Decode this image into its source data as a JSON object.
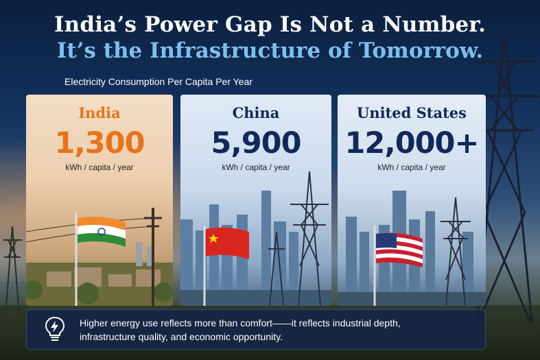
{
  "headline": {
    "line1": "India’s Power Gap Is Not a Number.",
    "line2": "It’s the Infrastructure of Tomorrow."
  },
  "subheading": "Electricity Consumption Per Capita Per Year",
  "cards": [
    {
      "country": "India",
      "value": "1,300",
      "unit": "kWh / capita / year",
      "accent": "#e8731a"
    },
    {
      "country": "China",
      "value": "5,900",
      "unit": "kWh / capita / year",
      "accent": "#10295a"
    },
    {
      "country": "United States",
      "value": "12,000+",
      "unit": "kWh / capita / year",
      "accent": "#10295a"
    }
  ],
  "footer": {
    "icon": "lightbulb-bolt-icon",
    "line1": "Higher energy use reflects more than comfort——it reflects industrial depth,",
    "line2": "infrastructure quality, and economic opportunity."
  },
  "colors": {
    "headline_primary": "#ffffff",
    "headline_secondary": "#7ec0ec",
    "india_accent": "#e8731a",
    "navy_accent": "#10295a"
  }
}
